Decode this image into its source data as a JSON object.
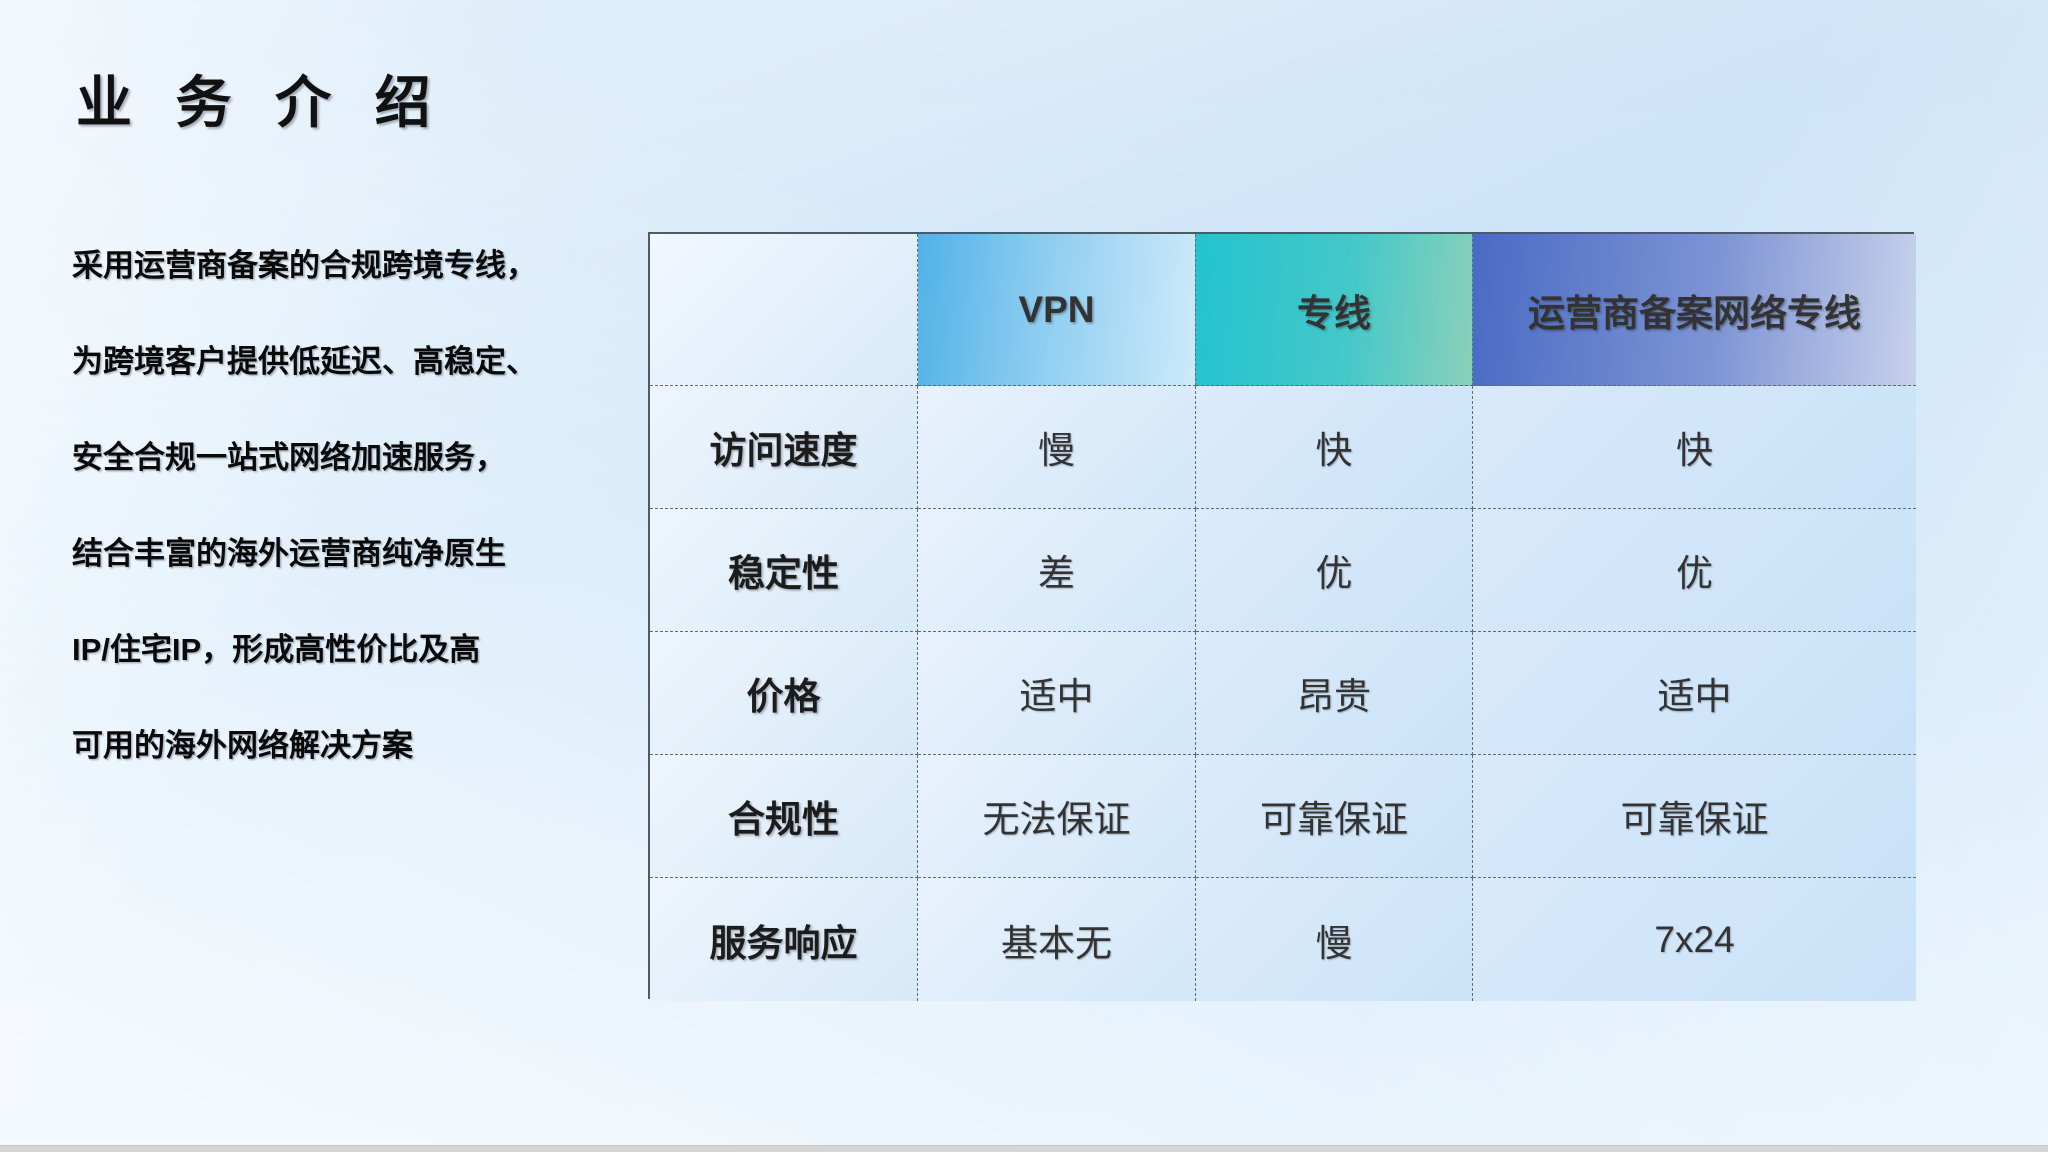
{
  "page": {
    "title": "业 务 介 绍"
  },
  "intro": {
    "lines": [
      "采用运营商备案的合规跨境专线，",
      "为跨境客户提供低延迟、高稳定、",
      "安全合规一站式网络加速服务，",
      "结合丰富的海外运营商纯净原生",
      "IP/住宅IP，形成高性价比及高",
      "可用的海外网络解决方案"
    ]
  },
  "comparison_table": {
    "columns": [
      "",
      "VPN",
      "专线",
      "运营商备案网络专线"
    ],
    "rows": [
      {
        "label": "访问速度",
        "values": [
          "慢",
          "快",
          "快"
        ]
      },
      {
        "label": "稳定性",
        "values": [
          "差",
          "优",
          "优"
        ]
      },
      {
        "label": "价格",
        "values": [
          "适中",
          "昂贵",
          "适中"
        ]
      },
      {
        "label": "合规性",
        "values": [
          "无法保证",
          "可靠保证",
          "可靠保证"
        ]
      },
      {
        "label": "服务响应",
        "values": [
          "基本无",
          "慢",
          "7x24"
        ]
      }
    ]
  },
  "chart_data": {
    "type": "table",
    "title": "业务介绍对比表",
    "columns": [
      "",
      "VPN",
      "专线",
      "运营商备案网络专线"
    ],
    "rows": [
      [
        "访问速度",
        "慢",
        "快",
        "快"
      ],
      [
        "稳定性",
        "差",
        "优",
        "优"
      ],
      [
        "价格",
        "适中",
        "昂贵",
        "适中"
      ],
      [
        "合规性",
        "无法保证",
        "可靠保证",
        "可靠保证"
      ],
      [
        "服务响应",
        "基本无",
        "慢",
        "7x24"
      ]
    ]
  },
  "colors": {
    "vpn_header_start": "#51b2e7",
    "vpn_header_end": "#cdeaf9",
    "dedicated_header_start": "#23c3d0",
    "dedicated_header_end": "#8ad0ba",
    "carrier_header_start": "#4a6bc4",
    "carrier_header_end": "#c8d2ec",
    "slide_background": "#cfe6f9",
    "table_border": "#4e5a64",
    "title_text": "#111111"
  }
}
